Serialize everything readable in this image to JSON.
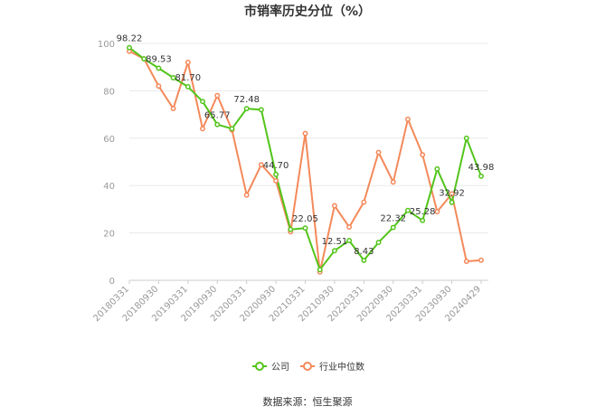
{
  "chart_data": {
    "type": "line",
    "title": "市销率历史分位（%）",
    "xlabel": "",
    "ylabel": "",
    "ylim": [
      0,
      100
    ],
    "yticks": [
      0,
      20,
      40,
      60,
      80,
      100
    ],
    "grid": true,
    "legend_position": "bottom",
    "x_tick_labels": [
      "20180331",
      "20180930",
      "20190331",
      "20190930",
      "20200331",
      "20200930",
      "20210331",
      "20210930",
      "20220331",
      "20220930",
      "20230331",
      "20230930",
      "20240429"
    ],
    "series": [
      {
        "name": "公司",
        "color": "#52c41a",
        "values": [
          98.22,
          93.5,
          89.53,
          85.5,
          81.7,
          75.5,
          65.77,
          64.0,
          72.48,
          72.0,
          44.7,
          21.5,
          22.05,
          4.5,
          12.51,
          16.8,
          8.43,
          16.0,
          22.32,
          29.5,
          25.28,
          47.0,
          32.92,
          60.0,
          43.98
        ]
      },
      {
        "name": "行业中位数",
        "color": "#f4895a",
        "values": [
          96.7,
          93.5,
          82.0,
          72.5,
          92.0,
          64.0,
          78.0,
          63.5,
          36.0,
          48.8,
          42.0,
          20.5,
          62.0,
          3.5,
          31.5,
          22.5,
          33.0,
          54.0,
          41.5,
          68.0,
          53.0,
          29.0,
          36.5,
          8.0,
          8.5
        ]
      }
    ],
    "data_labels": [
      {
        "series": 0,
        "index": 0,
        "text": "98.22"
      },
      {
        "series": 0,
        "index": 2,
        "text": "89.53"
      },
      {
        "series": 0,
        "index": 4,
        "text": "81.70"
      },
      {
        "series": 0,
        "index": 6,
        "text": "65.77"
      },
      {
        "series": 0,
        "index": 8,
        "text": "72.48"
      },
      {
        "series": 0,
        "index": 10,
        "text": "44.70"
      },
      {
        "series": 0,
        "index": 12,
        "text": "22.05"
      },
      {
        "series": 0,
        "index": 14,
        "text": "12.51"
      },
      {
        "series": 0,
        "index": 16,
        "text": "8.43"
      },
      {
        "series": 0,
        "index": 18,
        "text": "22.32"
      },
      {
        "series": 0,
        "index": 20,
        "text": "25.28"
      },
      {
        "series": 0,
        "index": 22,
        "text": "32.92"
      },
      {
        "series": 0,
        "index": 24,
        "text": "43.98"
      }
    ]
  },
  "source_text": "数据来源：恒生聚源"
}
